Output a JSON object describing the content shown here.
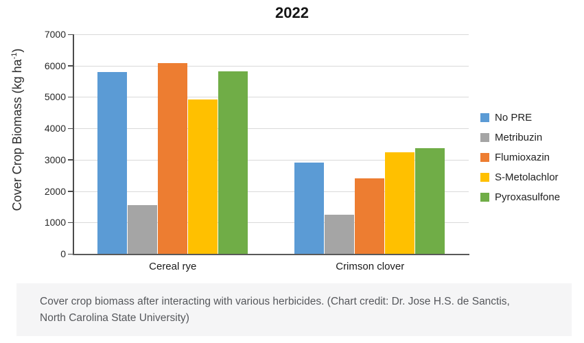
{
  "chart": {
    "title": "2022",
    "y_axis_title": {
      "text": "Cover Crop Biomass (kg ha",
      "superscript": "-1",
      "suffix": ")"
    }
  },
  "chart_data": {
    "type": "bar",
    "title": "2022",
    "ylabel": "Cover Crop Biomass (kg ha^-1)",
    "categories": [
      "Cereal rye",
      "Crimson clover"
    ],
    "series": [
      {
        "name": "No PRE",
        "color": "#5B9BD5",
        "values": [
          5800,
          2900
        ]
      },
      {
        "name": "Metribuzin",
        "color": "#A5A5A5",
        "values": [
          1550,
          1250
        ]
      },
      {
        "name": "Flumioxazin",
        "color": "#ED7D31",
        "values": [
          6080,
          2410
        ]
      },
      {
        "name": "S-Metolachlor",
        "color": "#FFC000",
        "values": [
          4920,
          3230
        ]
      },
      {
        "name": "Pyroxasulfone",
        "color": "#70AD47",
        "values": [
          5830,
          3370
        ]
      }
    ],
    "ylim": [
      0,
      7000
    ],
    "yticks": [
      0,
      1000,
      2000,
      3000,
      4000,
      5000,
      6000,
      7000
    ],
    "grid": true,
    "legend_position": "right"
  },
  "caption": {
    "text": "Cover crop biomass after interacting with various herbicides. (Chart credit: Dr. Jose H.S. de Sanctis, North Carolina State University)"
  },
  "colors": {
    "gridline": "#d9d9d9",
    "axis": "#4a4a4a",
    "caption_bg": "#f5f5f6",
    "caption_text": "#55575b"
  }
}
